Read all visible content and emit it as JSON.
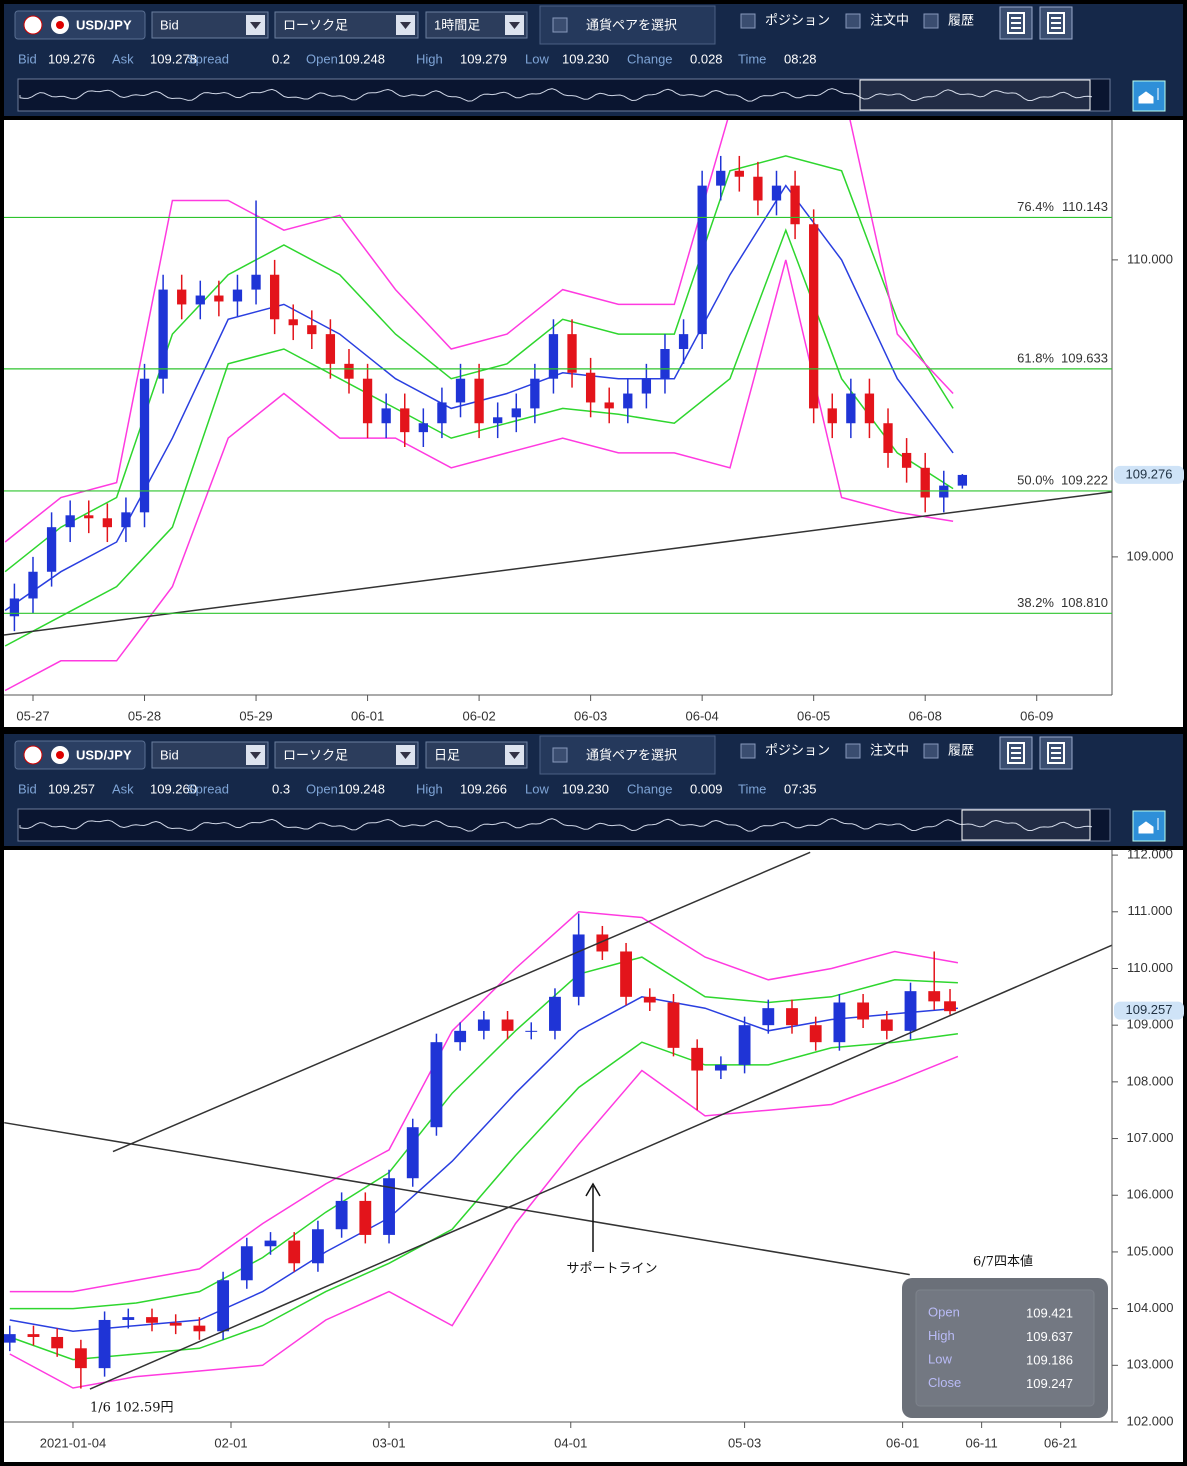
{
  "chart_data": [
    {
      "type": "candlestick",
      "toolbar": {
        "pair": "USD/JPY",
        "price_side": "Bid",
        "chart_style": "ローソク足",
        "timeframe": "1時間足",
        "select_pair": "通貨ペアを選択",
        "checkboxes": [
          "ポジション",
          "注文中",
          "履歴"
        ]
      },
      "quote": [
        {
          "label": "Bid",
          "value": "109.276"
        },
        {
          "label": "Ask",
          "value": "109.278"
        },
        {
          "label": "Spread",
          "value": "0.2"
        },
        {
          "label": "Open",
          "value": "109.248"
        },
        {
          "label": "High",
          "value": "109.279"
        },
        {
          "label": "Low",
          "value": "109.230"
        },
        {
          "label": "Change",
          "value": "0.028"
        },
        {
          "label": "Time",
          "value": "08:28"
        }
      ],
      "up_color": "#1f34d6",
      "down_color": "#e3141b",
      "x": [
        -4,
        0,
        4,
        8,
        12,
        16,
        20,
        24,
        28,
        32,
        36,
        40,
        44,
        48,
        52,
        56,
        60,
        64,
        68,
        72,
        76,
        80,
        84,
        88,
        92,
        96,
        100,
        104,
        108,
        112,
        116,
        120,
        124,
        128,
        132,
        136,
        140,
        144,
        148,
        152,
        156,
        160,
        164,
        168,
        172,
        176,
        180,
        184,
        188,
        192,
        196,
        200
      ],
      "open": [
        108.8,
        108.86,
        108.95,
        109.1,
        109.14,
        109.13,
        109.1,
        109.15,
        109.6,
        109.9,
        109.85,
        109.88,
        109.86,
        109.9,
        109.95,
        109.8,
        109.78,
        109.75,
        109.65,
        109.6,
        109.45,
        109.5,
        109.42,
        109.45,
        109.52,
        109.6,
        109.45,
        109.47,
        109.5,
        109.6,
        109.75,
        109.62,
        109.52,
        109.5,
        109.55,
        109.6,
        109.7,
        109.75,
        110.25,
        110.3,
        110.28,
        110.2,
        110.25,
        110.12,
        109.5,
        109.45,
        109.55,
        109.45,
        109.35,
        109.3,
        109.2,
        109.24
      ],
      "high": [
        108.91,
        109.0,
        109.15,
        109.19,
        109.19,
        109.18,
        109.2,
        109.65,
        109.95,
        109.95,
        109.93,
        109.93,
        109.95,
        110.2,
        110.0,
        109.85,
        109.83,
        109.8,
        109.7,
        109.65,
        109.55,
        109.55,
        109.5,
        109.57,
        109.65,
        109.65,
        109.52,
        109.55,
        109.65,
        109.8,
        109.8,
        109.67,
        109.57,
        109.6,
        109.65,
        109.75,
        109.8,
        110.3,
        110.35,
        110.35,
        110.33,
        110.3,
        110.3,
        110.17,
        109.55,
        109.6,
        109.6,
        109.5,
        109.4,
        109.35,
        109.29,
        109.279
      ],
      "low": [
        108.75,
        108.81,
        108.9,
        109.05,
        109.08,
        109.05,
        109.05,
        109.1,
        109.55,
        109.8,
        109.8,
        109.81,
        109.81,
        109.85,
        109.75,
        109.73,
        109.7,
        109.6,
        109.55,
        109.4,
        109.4,
        109.37,
        109.37,
        109.4,
        109.47,
        109.4,
        109.4,
        109.42,
        109.45,
        109.55,
        109.57,
        109.47,
        109.45,
        109.45,
        109.5,
        109.55,
        109.65,
        109.7,
        110.2,
        110.23,
        110.15,
        110.15,
        110.07,
        109.45,
        109.4,
        109.4,
        109.4,
        109.3,
        109.25,
        109.15,
        109.15,
        109.23
      ],
      "close": [
        108.86,
        108.95,
        109.1,
        109.14,
        109.13,
        109.1,
        109.15,
        109.6,
        109.9,
        109.85,
        109.88,
        109.86,
        109.9,
        109.95,
        109.8,
        109.78,
        109.75,
        109.65,
        109.6,
        109.45,
        109.5,
        109.42,
        109.45,
        109.52,
        109.6,
        109.45,
        109.47,
        109.5,
        109.6,
        109.75,
        109.62,
        109.52,
        109.5,
        109.55,
        109.6,
        109.7,
        109.75,
        110.25,
        110.3,
        110.28,
        110.2,
        110.25,
        110.12,
        109.5,
        109.45,
        109.55,
        109.45,
        109.35,
        109.3,
        109.2,
        109.24,
        109.276
      ],
      "band_x": [
        -6,
        6,
        18,
        30,
        42,
        54,
        66,
        78,
        90,
        102,
        114,
        126,
        138,
        150,
        162,
        174,
        186,
        198
      ],
      "bands": [
        {
          "color": "#2a3fe0",
          "values": [
            108.82,
            108.95,
            109.05,
            109.4,
            109.8,
            109.85,
            109.75,
            109.6,
            109.5,
            109.55,
            109.62,
            109.6,
            109.6,
            109.95,
            110.25,
            110.0,
            109.6,
            109.35
          ]
        },
        {
          "color": "#2ed62e",
          "values": [
            108.95,
            109.1,
            109.2,
            109.75,
            109.95,
            110.05,
            109.95,
            109.75,
            109.6,
            109.65,
            109.8,
            109.75,
            109.75,
            110.3,
            110.35,
            110.3,
            109.8,
            109.5
          ]
        },
        {
          "color": "#2ed62e",
          "values": [
            108.7,
            108.8,
            108.9,
            109.1,
            109.65,
            109.7,
            109.6,
            109.5,
            109.4,
            109.45,
            109.5,
            109.48,
            109.45,
            109.6,
            110.1,
            109.6,
            109.35,
            109.23
          ]
        },
        {
          "color": "#ff3ae0",
          "values": [
            109.05,
            109.2,
            109.25,
            110.2,
            110.2,
            110.1,
            110.15,
            109.9,
            109.7,
            109.75,
            109.9,
            109.85,
            109.85,
            110.5,
            110.6,
            110.6,
            109.75,
            109.55
          ]
        },
        {
          "color": "#ff3ae0",
          "values": [
            108.55,
            108.65,
            108.65,
            108.9,
            109.4,
            109.55,
            109.4,
            109.4,
            109.3,
            109.35,
            109.4,
            109.35,
            109.35,
            109.3,
            110.0,
            109.2,
            109.15,
            109.12
          ]
        }
      ],
      "xlim": [
        -6.24,
        232.2
      ],
      "xticks": [
        {
          "value": 0,
          "label": "05-27"
        },
        {
          "value": 24,
          "label": "05-28"
        },
        {
          "value": 48,
          "label": "05-29"
        },
        {
          "value": 72,
          "label": "06-01"
        },
        {
          "value": 96,
          "label": "06-02"
        },
        {
          "value": 120,
          "label": "06-03"
        },
        {
          "value": 144,
          "label": "06-04"
        },
        {
          "value": 168,
          "label": "06-05"
        },
        {
          "value": 192,
          "label": "06-08"
        },
        {
          "value": 216,
          "label": "06-09"
        }
      ],
      "ylim": [
        108.535,
        110.471
      ],
      "yticks": [
        {
          "value": 109,
          "label": "109.000"
        },
        {
          "value": 110,
          "label": "110.000"
        }
      ],
      "current_price": 109.276,
      "fib_levels": [
        {
          "level": "76.4%",
          "value": 110.143,
          "value_label": "110.143"
        },
        {
          "level": "61.8%",
          "value": 109.633,
          "value_label": "109.633"
        },
        {
          "level": "50.0%",
          "value": 109.222,
          "value_label": "109.222"
        },
        {
          "level": "38.2%",
          "value": 108.81,
          "value_label": "108.810"
        }
      ],
      "trend_lines": [
        {
          "x": [
            -6.24,
            232.2
          ],
          "y": [
            108.737,
            109.219
          ]
        }
      ]
    },
    {
      "type": "candlestick",
      "toolbar": {
        "pair": "USD/JPY",
        "price_side": "Bid",
        "chart_style": "ローソク足",
        "timeframe": "日足",
        "select_pair": "通貨ペアを選択",
        "checkboxes": [
          "ポジション",
          "注文中",
          "履歴"
        ]
      },
      "quote": [
        {
          "label": "Bid",
          "value": "109.257"
        },
        {
          "label": "Ask",
          "value": "109.260"
        },
        {
          "label": "Spread",
          "value": "0.3"
        },
        {
          "label": "Open",
          "value": "109.248"
        },
        {
          "label": "High",
          "value": "109.266"
        },
        {
          "label": "Low",
          "value": "109.230"
        },
        {
          "label": "Change",
          "value": "0.009"
        },
        {
          "label": "Time",
          "value": "07:35"
        }
      ],
      "up_color": "#1f34d6",
      "down_color": "#e3141b",
      "x": [
        -8,
        -5,
        -2,
        1,
        4,
        7,
        10,
        13,
        16,
        19,
        22,
        25,
        28,
        31,
        34,
        37,
        40,
        43,
        46,
        49,
        52,
        55,
        58,
        61,
        64,
        67,
        70,
        73,
        76,
        79,
        82,
        85,
        88,
        91,
        94,
        97,
        100,
        103,
        106,
        109,
        111
      ],
      "open": [
        103.4,
        103.55,
        103.5,
        103.3,
        102.95,
        103.8,
        103.85,
        103.75,
        103.7,
        103.6,
        104.5,
        105.1,
        105.2,
        104.8,
        105.4,
        105.9,
        105.3,
        106.3,
        107.2,
        108.7,
        108.9,
        109.1,
        108.9,
        108.9,
        109.5,
        110.6,
        110.3,
        109.5,
        109.4,
        108.6,
        108.2,
        108.3,
        109.0,
        109.3,
        109.0,
        108.7,
        109.4,
        109.1,
        108.9,
        109.6,
        109.421
      ],
      "high": [
        103.7,
        103.7,
        103.65,
        103.45,
        103.95,
        104.0,
        104.0,
        103.9,
        103.85,
        104.65,
        105.25,
        105.35,
        105.35,
        105.55,
        106.05,
        106.05,
        106.45,
        107.35,
        108.85,
        109.05,
        109.25,
        109.25,
        109.05,
        109.65,
        110.97,
        110.75,
        110.45,
        109.65,
        109.55,
        108.75,
        108.45,
        109.15,
        109.45,
        109.45,
        109.15,
        109.55,
        109.55,
        109.25,
        109.75,
        110.3,
        109.637
      ],
      "low": [
        103.25,
        103.35,
        103.15,
        102.59,
        102.8,
        103.65,
        103.6,
        103.55,
        103.45,
        103.45,
        104.35,
        104.95,
        104.65,
        104.65,
        105.25,
        105.15,
        105.15,
        106.15,
        107.05,
        108.55,
        108.75,
        108.75,
        108.75,
        108.75,
        109.35,
        110.15,
        109.35,
        109.25,
        108.45,
        107.5,
        108.05,
        108.15,
        108.85,
        108.85,
        108.55,
        108.55,
        108.95,
        108.75,
        108.75,
        109.27,
        109.186
      ],
      "close": [
        103.55,
        103.5,
        103.3,
        102.95,
        103.8,
        103.85,
        103.75,
        103.7,
        103.6,
        104.5,
        105.1,
        105.2,
        104.8,
        105.4,
        105.9,
        105.3,
        106.3,
        107.2,
        108.7,
        108.9,
        109.1,
        108.9,
        108.9,
        109.5,
        110.6,
        110.3,
        109.5,
        109.4,
        108.6,
        108.2,
        108.3,
        109.0,
        109.3,
        109.0,
        108.7,
        109.4,
        109.1,
        108.9,
        109.6,
        109.42,
        109.247
      ],
      "band_x": [
        -8,
        0,
        8,
        16,
        24,
        32,
        40,
        48,
        56,
        64,
        72,
        80,
        88,
        96,
        104,
        112
      ],
      "bands": [
        {
          "color": "#2a3fe0",
          "values": [
            103.8,
            103.6,
            103.7,
            103.8,
            104.3,
            105.0,
            105.6,
            106.6,
            107.8,
            108.9,
            109.5,
            109.3,
            108.9,
            109.1,
            109.2,
            109.3
          ]
        },
        {
          "color": "#2ed62e",
          "values": [
            104.0,
            104.0,
            104.1,
            104.3,
            104.9,
            105.7,
            106.4,
            107.8,
            108.9,
            109.9,
            110.2,
            109.5,
            109.4,
            109.5,
            109.8,
            109.75
          ]
        },
        {
          "color": "#2ed62e",
          "values": [
            103.5,
            103.1,
            103.2,
            103.3,
            103.7,
            104.3,
            104.8,
            105.4,
            106.7,
            107.9,
            108.7,
            108.3,
            108.3,
            108.6,
            108.7,
            108.85
          ]
        },
        {
          "color": "#ff3ae0",
          "values": [
            104.3,
            104.3,
            104.5,
            104.7,
            105.5,
            106.2,
            106.8,
            108.9,
            110.0,
            111.0,
            110.9,
            110.2,
            109.8,
            110.0,
            110.3,
            110.1
          ]
        },
        {
          "color": "#ff3ae0",
          "values": [
            103.2,
            102.6,
            102.8,
            102.9,
            103.0,
            103.8,
            104.3,
            103.7,
            105.5,
            106.9,
            108.2,
            107.4,
            107.5,
            107.6,
            108.0,
            108.45
          ]
        }
      ],
      "xlim": [
        -8.73,
        131.5
      ],
      "xticks": [
        {
          "value": 0,
          "label": "2021-01-04"
        },
        {
          "value": 20,
          "label": "02-01"
        },
        {
          "value": 40,
          "label": "03-01"
        },
        {
          "value": 63,
          "label": "04-01"
        },
        {
          "value": 85,
          "label": "05-03"
        },
        {
          "value": 105,
          "label": "06-01"
        },
        {
          "value": 115,
          "label": "06-11"
        },
        {
          "value": 125,
          "label": "06-21"
        }
      ],
      "ylim": [
        102.0,
        112.09
      ],
      "yticks": [
        {
          "value": 102,
          "label": "102.000"
        },
        {
          "value": 103,
          "label": "103.000"
        },
        {
          "value": 104,
          "label": "104.000"
        },
        {
          "value": 105,
          "label": "105.000"
        },
        {
          "value": 106,
          "label": "106.000"
        },
        {
          "value": 107,
          "label": "107.000"
        },
        {
          "value": 108,
          "label": "108.000"
        },
        {
          "value": 109,
          "label": "109.000"
        },
        {
          "value": 110,
          "label": "110.000"
        },
        {
          "value": 111,
          "label": "111.000"
        },
        {
          "value": 112,
          "label": "112.000"
        }
      ],
      "current_price": 109.257,
      "trend_lines": [
        {
          "x": [
            5.06,
            93.3
          ],
          "y": [
            106.77,
            112.05
          ]
        },
        {
          "x": [
            2.15,
            131.5
          ],
          "y": [
            102.58,
            110.41
          ]
        },
        {
          "x": [
            -8.7,
            105.9
          ],
          "y": [
            107.28,
            104.6
          ]
        }
      ],
      "annotations": [
        "サポートライン",
        "1/6  102.59円"
      ],
      "ohlc_box": {
        "title": "6/7四本値",
        "labels": [
          "Open",
          "High",
          "Low",
          "Close"
        ]
      }
    }
  ]
}
